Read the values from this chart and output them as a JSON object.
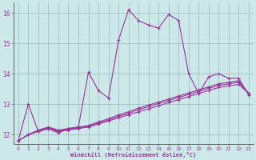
{
  "xlabel": "Windchill (Refroidissement éolien,°C)",
  "bg_color": "#cce8e8",
  "line_color": "#993399",
  "grid_color": "#99bbbb",
  "xlim": [
    -0.5,
    23.5
  ],
  "ylim": [
    11.7,
    16.35
  ],
  "yticks": [
    12,
    13,
    14,
    15,
    16
  ],
  "xticks": [
    0,
    1,
    2,
    3,
    4,
    5,
    6,
    7,
    8,
    9,
    10,
    11,
    12,
    13,
    14,
    15,
    16,
    17,
    18,
    19,
    20,
    21,
    22,
    23
  ],
  "series": [
    {
      "x": [
        0,
        1,
        2,
        3,
        4,
        5,
        6,
        7,
        8,
        9,
        10,
        11,
        12,
        13,
        14,
        15,
        16,
        17,
        18,
        19,
        20,
        21,
        22,
        23
      ],
      "y": [
        11.8,
        13.0,
        12.1,
        12.2,
        12.05,
        12.2,
        12.25,
        14.05,
        13.45,
        13.2,
        15.1,
        16.1,
        15.75,
        15.6,
        15.5,
        15.95,
        15.75,
        14.0,
        13.35,
        13.9,
        14.0,
        13.85,
        13.85,
        13.3
      ]
    },
    {
      "x": [
        0,
        1,
        2,
        3,
        4,
        5,
        6,
        7,
        8,
        9,
        10,
        11,
        12,
        13,
        14,
        15,
        16,
        17,
        18,
        19,
        20,
        21,
        22,
        23
      ],
      "y": [
        11.8,
        12.0,
        12.1,
        12.2,
        12.1,
        12.15,
        12.2,
        12.25,
        12.35,
        12.45,
        12.55,
        12.65,
        12.75,
        12.85,
        12.95,
        13.05,
        13.15,
        13.25,
        13.35,
        13.45,
        13.55,
        13.6,
        13.65,
        13.35
      ]
    },
    {
      "x": [
        0,
        1,
        2,
        3,
        4,
        5,
        6,
        7,
        8,
        9,
        10,
        11,
        12,
        13,
        14,
        15,
        16,
        17,
        18,
        19,
        20,
        21,
        22,
        23
      ],
      "y": [
        11.8,
        12.0,
        12.12,
        12.22,
        12.12,
        12.17,
        12.22,
        12.27,
        12.38,
        12.48,
        12.6,
        12.7,
        12.82,
        12.92,
        13.02,
        13.12,
        13.22,
        13.32,
        13.42,
        13.52,
        13.62,
        13.67,
        13.72,
        13.35
      ]
    },
    {
      "x": [
        0,
        1,
        2,
        3,
        4,
        5,
        6,
        7,
        8,
        9,
        10,
        11,
        12,
        13,
        14,
        15,
        16,
        17,
        18,
        19,
        20,
        21,
        22,
        23
      ],
      "y": [
        11.8,
        12.0,
        12.15,
        12.25,
        12.15,
        12.2,
        12.25,
        12.3,
        12.42,
        12.52,
        12.65,
        12.75,
        12.87,
        12.97,
        13.07,
        13.17,
        13.27,
        13.37,
        13.47,
        13.57,
        13.67,
        13.72,
        13.77,
        13.35
      ]
    }
  ]
}
